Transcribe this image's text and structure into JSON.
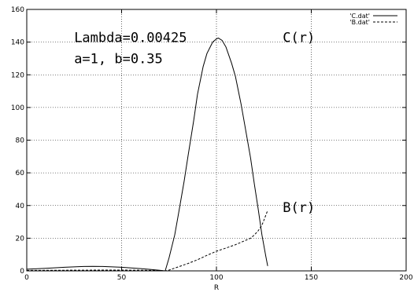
{
  "chart_data": {
    "type": "line",
    "xlabel": "R",
    "ylabel": "",
    "title": "",
    "xlim": [
      0,
      200
    ],
    "ylim": [
      0,
      160
    ],
    "x_ticks": [
      0,
      50,
      100,
      150,
      200
    ],
    "y_ticks": [
      0,
      20,
      40,
      60,
      80,
      100,
      120,
      140,
      160
    ],
    "grid": true,
    "legend_position": "top-right",
    "annotations": [
      {
        "text": "Lambda=0.00425",
        "x": 20,
        "y": 143
      },
      {
        "text": "a=1, b=0.35",
        "x": 20,
        "y": 130
      },
      {
        "text": "C(r)",
        "x": 130,
        "y": 143
      },
      {
        "text": "B(r)",
        "x": 130,
        "y": 39
      }
    ],
    "series": [
      {
        "name": "'C.dat'",
        "style": "solid",
        "x": [
          0,
          10,
          20,
          30,
          35,
          40,
          50,
          60,
          65,
          70,
          73,
          75,
          78,
          80,
          83,
          85,
          88,
          90,
          93,
          95,
          98,
          100,
          101,
          103,
          105,
          108,
          110,
          113,
          115,
          118,
          120,
          122,
          124,
          126,
          127
        ],
        "y": [
          1,
          1.6,
          2.2,
          2.7,
          2.8,
          2.7,
          2.2,
          1.4,
          0.9,
          0.4,
          0,
          8,
          22,
          35,
          55,
          70,
          92,
          108,
          125,
          133,
          140,
          142,
          142.5,
          141,
          137,
          127,
          119,
          102,
          89,
          69,
          53,
          38,
          22,
          9,
          3
        ]
      },
      {
        "name": "'B.dat'",
        "style": "dashed",
        "x": [
          0,
          10,
          20,
          30,
          40,
          50,
          60,
          70,
          73,
          75,
          80,
          85,
          90,
          95,
          100,
          105,
          110,
          115,
          118,
          120,
          122,
          124,
          125,
          126,
          127
        ],
        "y": [
          0.3,
          0.35,
          0.4,
          0.45,
          0.5,
          0.5,
          0.4,
          0.2,
          0,
          0.5,
          2.5,
          4.5,
          6.8,
          9.5,
          12,
          14,
          16,
          18.5,
          20,
          22,
          24.5,
          28,
          31,
          34,
          37
        ]
      }
    ]
  }
}
